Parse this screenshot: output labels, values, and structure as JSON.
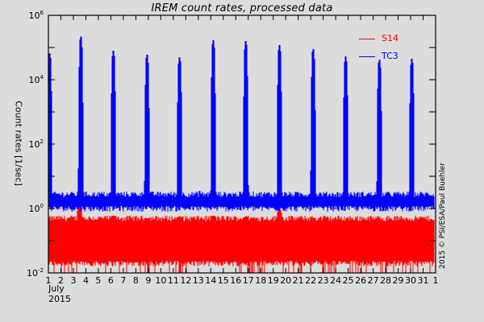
{
  "chart_data": {
    "type": "line",
    "title": "IREM count rates, processed data",
    "xlabel": "July 2015",
    "ylabel": "Count rates [1/sec]",
    "yscale": "log",
    "ylim": [
      0.01,
      1000000
    ],
    "ytick_labels": [
      "10^6",
      "10^4",
      "10^2",
      "10^0",
      "10^-2"
    ],
    "xlim": [
      1,
      32
    ],
    "x_tick_labels": [
      "1",
      "2",
      "3",
      "4",
      "5",
      "6",
      "7",
      "8",
      "9",
      "10",
      "11",
      "12",
      "13",
      "14",
      "15",
      "16",
      "17",
      "18",
      "19",
      "20",
      "21",
      "22",
      "23",
      "24",
      "25",
      "26",
      "27",
      "28",
      "29",
      "30",
      "31",
      "1"
    ],
    "x_month_label": "July",
    "x_year_label": "2015",
    "legend_position": "upper right",
    "grid": false,
    "series": [
      {
        "name": "S14",
        "color": "#ff0000",
        "baseline": 0.16,
        "baseline_low": 0.02,
        "baseline_high": 0.5,
        "dropout_min": 0.01,
        "peaks": [
          {
            "day": 3.5,
            "value": 1.2
          },
          {
            "day": 6.2,
            "value": 0.6
          },
          {
            "day": 8.9,
            "value": 0.5
          },
          {
            "day": 11.5,
            "value": 0.55
          },
          {
            "day": 14.2,
            "value": 0.6
          },
          {
            "day": 16.8,
            "value": 0.55
          },
          {
            "day": 19.5,
            "value": 0.9
          },
          {
            "day": 22.2,
            "value": 0.5
          },
          {
            "day": 24.8,
            "value": 0.4
          },
          {
            "day": 27.5,
            "value": 0.45
          },
          {
            "day": 30.1,
            "value": 0.35
          }
        ]
      },
      {
        "name": "TC3",
        "color": "#0000ff",
        "baseline": 1.8,
        "baseline_low": 1.0,
        "baseline_high": 2.8,
        "peaks": [
          {
            "day": 1.1,
            "value": 66000
          },
          {
            "day": 3.6,
            "value": 220000
          },
          {
            "day": 6.2,
            "value": 80000
          },
          {
            "day": 8.9,
            "value": 60000
          },
          {
            "day": 11.5,
            "value": 50000
          },
          {
            "day": 14.2,
            "value": 170000
          },
          {
            "day": 16.8,
            "value": 160000
          },
          {
            "day": 19.5,
            "value": 120000
          },
          {
            "day": 22.2,
            "value": 90000
          },
          {
            "day": 24.8,
            "value": 53000
          },
          {
            "day": 27.5,
            "value": 42000
          },
          {
            "day": 30.1,
            "value": 45000
          }
        ],
        "minor_bump": {
          "day": 13.1,
          "value": 3.5
        }
      }
    ],
    "credit": "2015 © PSI/ESA/Paul Buehler"
  }
}
